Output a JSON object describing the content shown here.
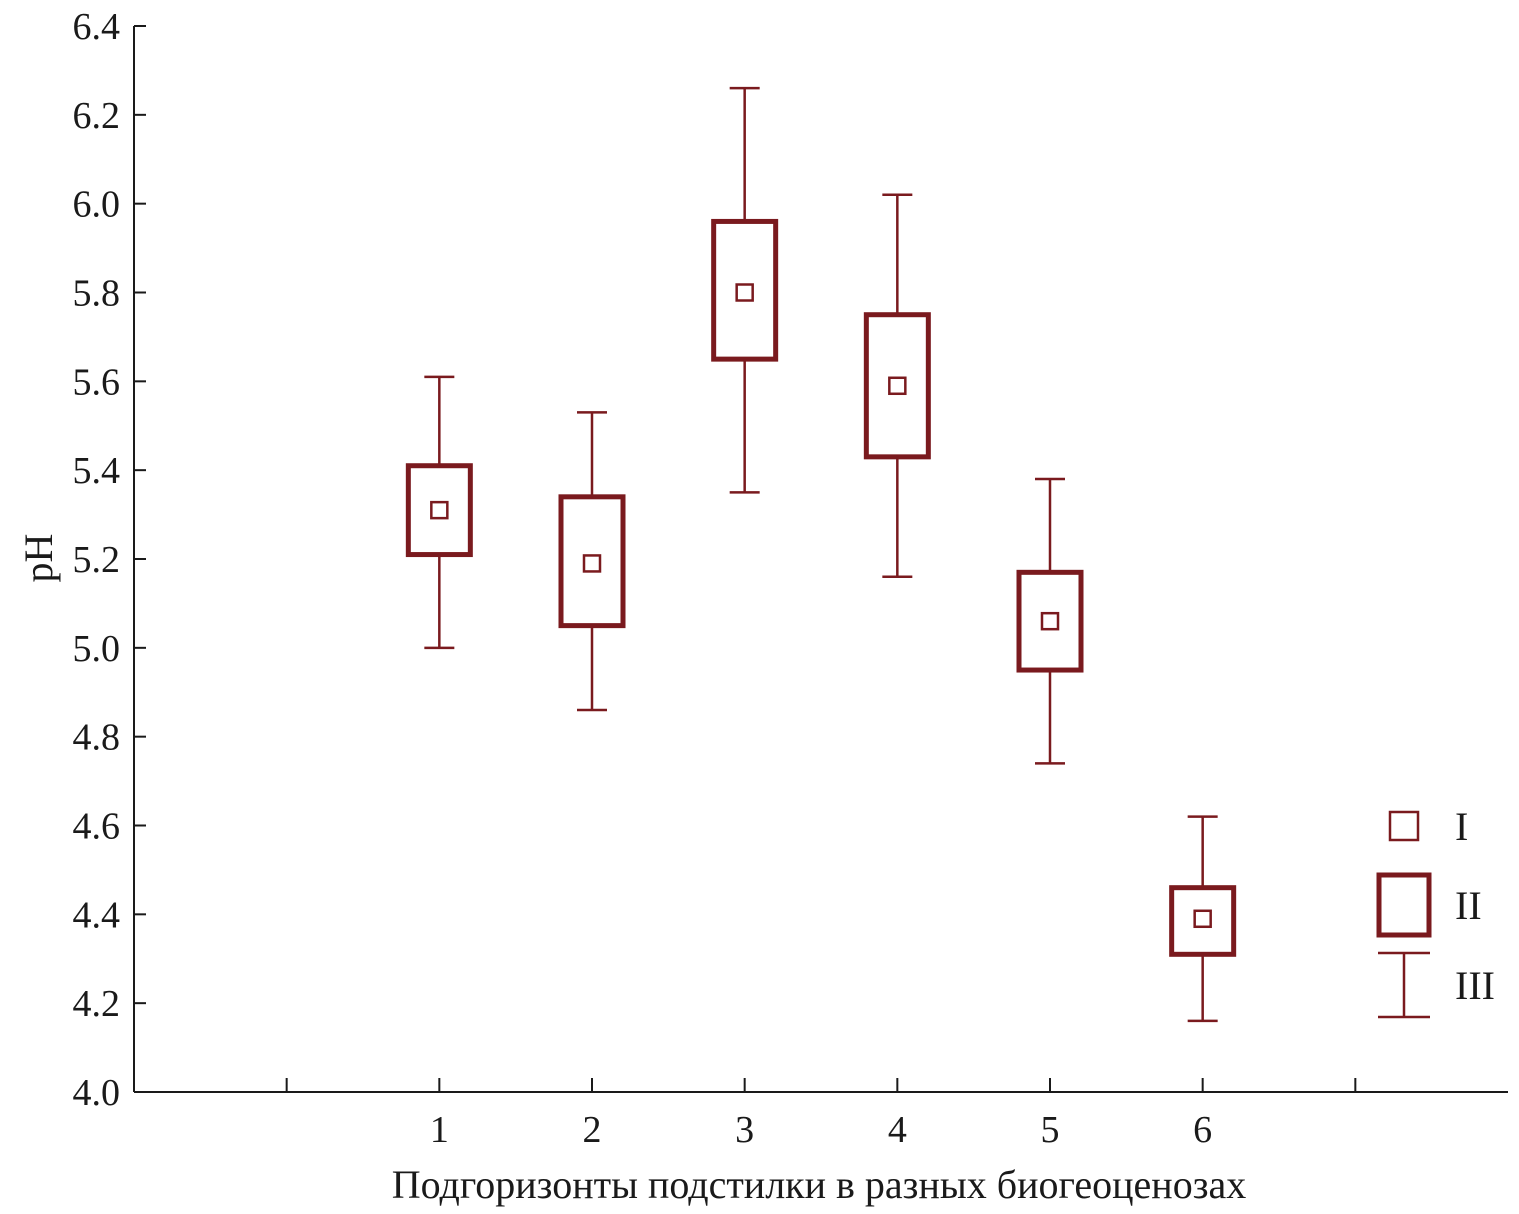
{
  "chart_data": {
    "type": "box",
    "xlabel": "Подгоризонты подстилки в разных биогеоценозах",
    "ylabel": "pH",
    "ylim": [
      4.0,
      6.4
    ],
    "yticks": [
      "4.0",
      "4.2",
      "4.4",
      "4.6",
      "4.8",
      "5.0",
      "5.2",
      "5.4",
      "5.6",
      "5.8",
      "6.0",
      "6.2",
      "6.4"
    ],
    "xlim": [
      -1,
      8
    ],
    "categories": [
      "1",
      "2",
      "3",
      "4",
      "5",
      "6"
    ],
    "series": [
      {
        "category": "1",
        "mean": 5.31,
        "box_low": 5.21,
        "box_high": 5.41,
        "whisker_low": 5.0,
        "whisker_high": 5.61
      },
      {
        "category": "2",
        "mean": 5.19,
        "box_low": 5.05,
        "box_high": 5.34,
        "whisker_low": 4.86,
        "whisker_high": 5.53
      },
      {
        "category": "3",
        "mean": 5.8,
        "box_low": 5.65,
        "box_high": 5.96,
        "whisker_low": 5.35,
        "whisker_high": 6.26
      },
      {
        "category": "4",
        "mean": 5.59,
        "box_low": 5.43,
        "box_high": 5.75,
        "whisker_low": 5.16,
        "whisker_high": 6.02
      },
      {
        "category": "5",
        "mean": 5.06,
        "box_low": 4.95,
        "box_high": 5.17,
        "whisker_low": 4.74,
        "whisker_high": 5.38
      },
      {
        "category": "6",
        "mean": 4.39,
        "box_low": 4.31,
        "box_high": 4.46,
        "whisker_low": 4.16,
        "whisker_high": 4.62
      }
    ],
    "legend": {
      "placement": "bottom-right",
      "items": [
        {
          "label": "I",
          "symbol": "small-square"
        },
        {
          "label": "II",
          "symbol": "box"
        },
        {
          "label": "III",
          "symbol": "whisker"
        }
      ]
    },
    "colors": {
      "marks": "#7a1a1e",
      "axis": "#1a1a1a"
    },
    "grid": false
  }
}
